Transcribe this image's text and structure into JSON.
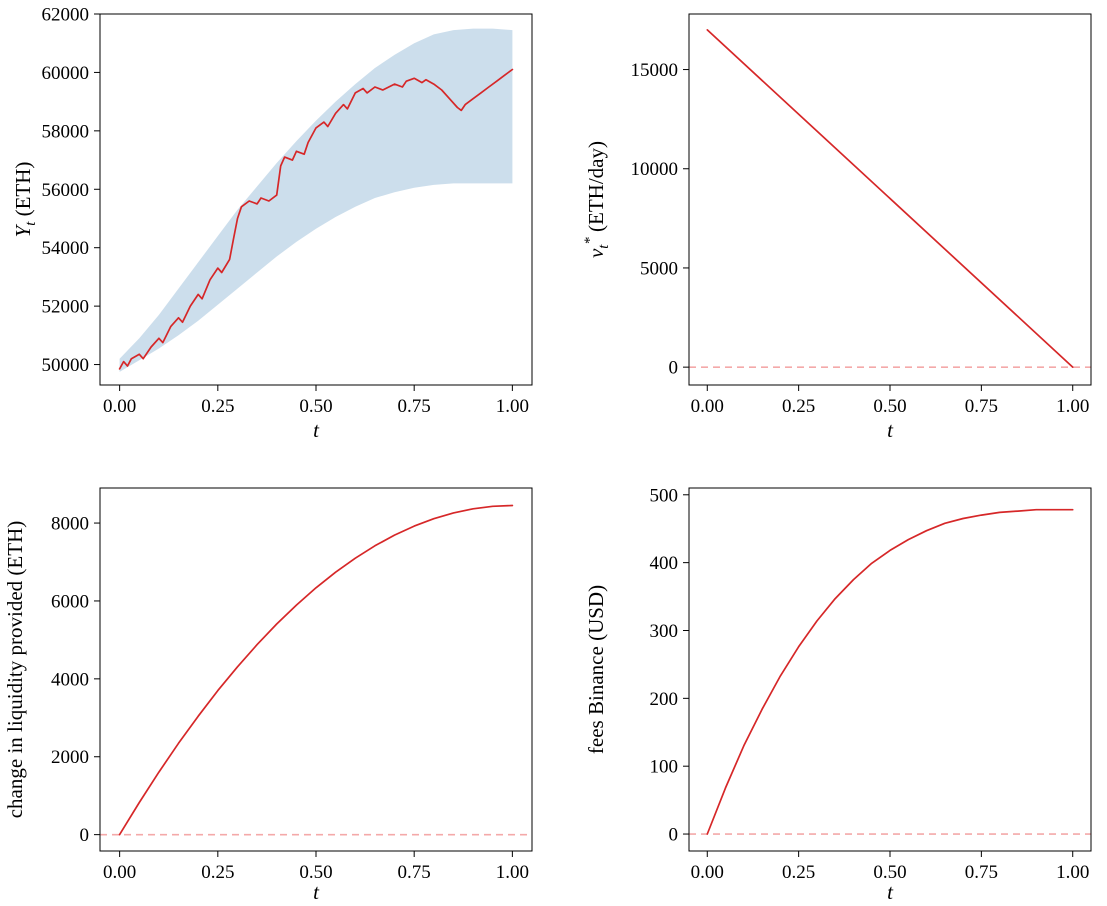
{
  "figure": {
    "background": "#ffffff",
    "rows": 2,
    "cols": 2
  },
  "colors": {
    "series_red": "#d62728",
    "zero_line_pink": "#f4a9a9",
    "ensemble_band_blue": "#c7daea",
    "axis_black": "#000000"
  },
  "chart_data": [
    {
      "type": "line",
      "title": "",
      "xlabel": "$t$",
      "ylabel": "$Y_t$ (ETH)",
      "xlim": [
        -0.05,
        1.05
      ],
      "ylim": [
        49300,
        62000
      ],
      "xticks": [
        0,
        0.25,
        0.5,
        0.75,
        1.0
      ],
      "xtick_labels": [
        "0.00",
        "0.25",
        "0.50",
        "0.75",
        "1.00"
      ],
      "yticks": [
        50000,
        52000,
        54000,
        56000,
        58000,
        60000,
        62000
      ],
      "ytick_labels": [
        "50000",
        "52000",
        "54000",
        "56000",
        "58000",
        "60000",
        "62000"
      ],
      "grid": false,
      "legend": "none",
      "series": [
        {
          "name": "ensemble-band",
          "kind": "band",
          "color": "#c7daea",
          "opacity": 0.9,
          "x": [
            0,
            0.05,
            0.1,
            0.15,
            0.2,
            0.25,
            0.3,
            0.35,
            0.4,
            0.45,
            0.5,
            0.55,
            0.6,
            0.65,
            0.7,
            0.75,
            0.8,
            0.85,
            0.9,
            0.95,
            1.0
          ],
          "lower": [
            49750,
            50150,
            50550,
            51000,
            51500,
            52050,
            52600,
            53150,
            53700,
            54200,
            54650,
            55050,
            55400,
            55700,
            55900,
            56050,
            56150,
            56200,
            56200,
            56200,
            56200
          ],
          "upper": [
            50200,
            50900,
            51700,
            52600,
            53500,
            54400,
            55300,
            56100,
            56900,
            57650,
            58350,
            59000,
            59600,
            60150,
            60600,
            61000,
            61300,
            61450,
            61500,
            61500,
            61450
          ]
        },
        {
          "name": "realized-path",
          "kind": "line",
          "color": "#d62728",
          "width": 1.7,
          "x": [
            0,
            0.01,
            0.02,
            0.03,
            0.05,
            0.06,
            0.08,
            0.1,
            0.11,
            0.13,
            0.15,
            0.16,
            0.18,
            0.2,
            0.21,
            0.23,
            0.25,
            0.26,
            0.28,
            0.29,
            0.3,
            0.31,
            0.33,
            0.35,
            0.36,
            0.38,
            0.4,
            0.41,
            0.42,
            0.44,
            0.45,
            0.47,
            0.48,
            0.5,
            0.52,
            0.53,
            0.55,
            0.57,
            0.58,
            0.6,
            0.62,
            0.63,
            0.65,
            0.67,
            0.7,
            0.72,
            0.73,
            0.75,
            0.77,
            0.78,
            0.8,
            0.82,
            0.84,
            0.86,
            0.87,
            0.88,
            0.9,
            0.92,
            0.94,
            0.96,
            0.98,
            1.0
          ],
          "y": [
            49850,
            50100,
            49950,
            50200,
            50350,
            50200,
            50600,
            50900,
            50750,
            51300,
            51600,
            51450,
            52000,
            52400,
            52250,
            52900,
            53300,
            53150,
            53600,
            54300,
            55000,
            55400,
            55600,
            55500,
            55700,
            55600,
            55800,
            56800,
            57100,
            57000,
            57300,
            57200,
            57600,
            58100,
            58300,
            58150,
            58600,
            58900,
            58750,
            59300,
            59450,
            59300,
            59500,
            59400,
            59600,
            59500,
            59700,
            59800,
            59650,
            59750,
            59600,
            59400,
            59100,
            58800,
            58700,
            58900,
            59100,
            59300,
            59500,
            59700,
            59900,
            60100
          ]
        }
      ]
    },
    {
      "type": "line",
      "title": "",
      "xlabel": "$t$",
      "ylabel": "$\\nu_t^*$ (ETH/day)",
      "xlim": [
        -0.05,
        1.05
      ],
      "ylim": [
        -900,
        17800
      ],
      "xticks": [
        0,
        0.25,
        0.5,
        0.75,
        1.0
      ],
      "xtick_labels": [
        "0.00",
        "0.25",
        "0.50",
        "0.75",
        "1.00"
      ],
      "yticks": [
        0,
        5000,
        10000,
        15000
      ],
      "ytick_labels": [
        "0",
        "5000",
        "10000",
        "15000"
      ],
      "grid": false,
      "legend": "none",
      "series": [
        {
          "name": "zero-reference",
          "kind": "hline",
          "y": 0,
          "dash": true,
          "color": "#f4a9a9",
          "width": 1.6
        },
        {
          "name": "optimal-trading-rate",
          "kind": "line",
          "color": "#d62728",
          "width": 1.7,
          "x": [
            0,
            1.0
          ],
          "y": [
            17000,
            0
          ]
        }
      ]
    },
    {
      "type": "line",
      "title": "",
      "xlabel": "$t$",
      "ylabel": "change in liquidity provided (ETH)",
      "xlim": [
        -0.05,
        1.05
      ],
      "ylim": [
        -420,
        8900
      ],
      "xticks": [
        0,
        0.25,
        0.5,
        0.75,
        1.0
      ],
      "xtick_labels": [
        "0.00",
        "0.25",
        "0.50",
        "0.75",
        "1.00"
      ],
      "yticks": [
        0,
        2000,
        4000,
        6000,
        8000
      ],
      "ytick_labels": [
        "0",
        "2000",
        "4000",
        "6000",
        "8000"
      ],
      "grid": false,
      "legend": "none",
      "series": [
        {
          "name": "zero-reference",
          "kind": "hline",
          "y": 0,
          "dash": true,
          "color": "#f4a9a9",
          "width": 1.6
        },
        {
          "name": "cumulative-liquidity-change",
          "kind": "line",
          "color": "#d62728",
          "width": 1.7,
          "x": [
            0,
            0.05,
            0.1,
            0.15,
            0.2,
            0.25,
            0.3,
            0.35,
            0.4,
            0.45,
            0.5,
            0.55,
            0.6,
            0.65,
            0.7,
            0.75,
            0.8,
            0.85,
            0.9,
            0.95,
            1.0
          ],
          "y": [
            0,
            824,
            1606,
            2345,
            3042,
            3697,
            4310,
            4880,
            5408,
            5894,
            6338,
            6739,
            7098,
            7415,
            7690,
            7922,
            8112,
            8260,
            8366,
            8429,
            8450
          ]
        }
      ]
    },
    {
      "type": "line",
      "title": "",
      "xlabel": "$t$",
      "ylabel": "fees Binance (USD)",
      "xlim": [
        -0.05,
        1.05
      ],
      "ylim": [
        -25,
        510
      ],
      "xticks": [
        0,
        0.25,
        0.5,
        0.75,
        1.0
      ],
      "xtick_labels": [
        "0.00",
        "0.25",
        "0.50",
        "0.75",
        "1.00"
      ],
      "yticks": [
        0,
        100,
        200,
        300,
        400,
        500
      ],
      "ytick_labels": [
        "0",
        "100",
        "200",
        "300",
        "400",
        "500"
      ],
      "grid": false,
      "legend": "none",
      "series": [
        {
          "name": "zero-reference",
          "kind": "hline",
          "y": 0,
          "dash": true,
          "color": "#f4a9a9",
          "width": 1.6
        },
        {
          "name": "cumulative-fees",
          "kind": "line",
          "color": "#d62728",
          "width": 1.7,
          "x": [
            0,
            0.05,
            0.1,
            0.15,
            0.2,
            0.25,
            0.3,
            0.35,
            0.4,
            0.45,
            0.5,
            0.55,
            0.6,
            0.65,
            0.7,
            0.75,
            0.8,
            0.85,
            0.9,
            0.95,
            1.0
          ],
          "y": [
            0,
            68,
            130,
            184,
            233,
            276,
            314,
            347,
            375,
            399,
            418,
            434,
            447,
            458,
            465,
            470,
            474,
            476,
            478,
            478,
            478
          ]
        }
      ]
    }
  ]
}
